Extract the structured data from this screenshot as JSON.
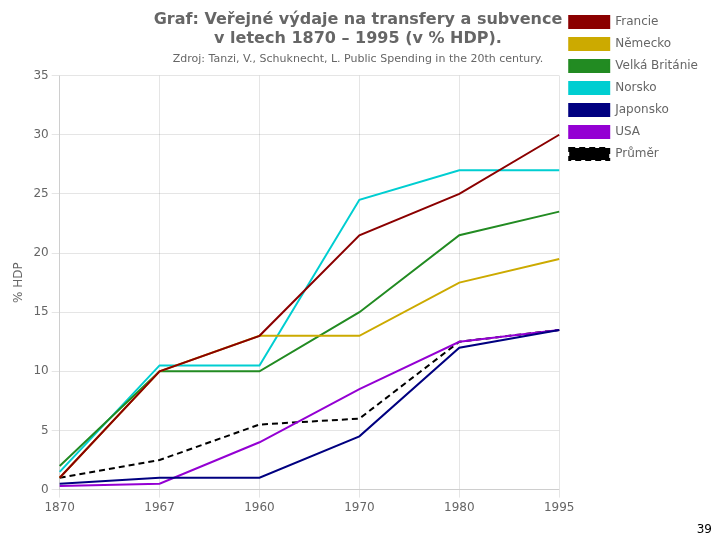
{
  "chart_data": {
    "type": "line",
    "title": [
      "Graf: Veřejné výdaje na transfery a subvence",
      "v letech 1870 – 1995 (v % HDP)."
    ],
    "subtitle": "Zdroj: Tanzi, V., Schuknecht, L. Public Spending in the 20th century.",
    "page_number": "39",
    "y_label": "% HDP",
    "categories": [
      "1870",
      "1967",
      "1960",
      "1970",
      "1980",
      "1995"
    ],
    "series": [
      {
        "name": "Francie",
        "color": "#8B0000",
        "line_style": "solid",
        "values": [
          1.0,
          10.0,
          13.0,
          21.5,
          25.0,
          30.0
        ]
      },
      {
        "name": "Německo",
        "color": "#ccaa00",
        "line_style": "solid",
        "values": [
          1.0,
          10.0,
          13.0,
          13.0,
          17.5,
          19.5
        ]
      },
      {
        "name": "Velká Británie",
        "color": "#228B22",
        "line_style": "solid",
        "values": [
          2.0,
          10.0,
          10.0,
          15.0,
          21.5,
          23.5
        ]
      },
      {
        "name": "Norsko",
        "color": "#00CED1",
        "line_style": "solid",
        "values": [
          1.5,
          10.5,
          10.5,
          24.5,
          27.0,
          27.0
        ]
      },
      {
        "name": "Japonsko",
        "color": "#000080",
        "line_style": "solid",
        "values": [
          0.5,
          1.0,
          1.0,
          4.5,
          12.0,
          13.5
        ]
      },
      {
        "name": "USA",
        "color": "#9400D3",
        "line_style": "solid",
        "values": [
          0.3,
          0.5,
          4.0,
          8.5,
          12.5,
          13.5
        ]
      },
      {
        "name": "Průměr",
        "color": "#000000",
        "line_style": "dashed",
        "values": [
          1.0,
          2.5,
          5.5,
          6.0,
          12.5,
          13.5
        ]
      }
    ],
    "ylim": [
      0,
      35
    ],
    "yticks": [
      0,
      5,
      10,
      15,
      20,
      25,
      30,
      35
    ],
    "grid": true,
    "legend": "right"
  }
}
